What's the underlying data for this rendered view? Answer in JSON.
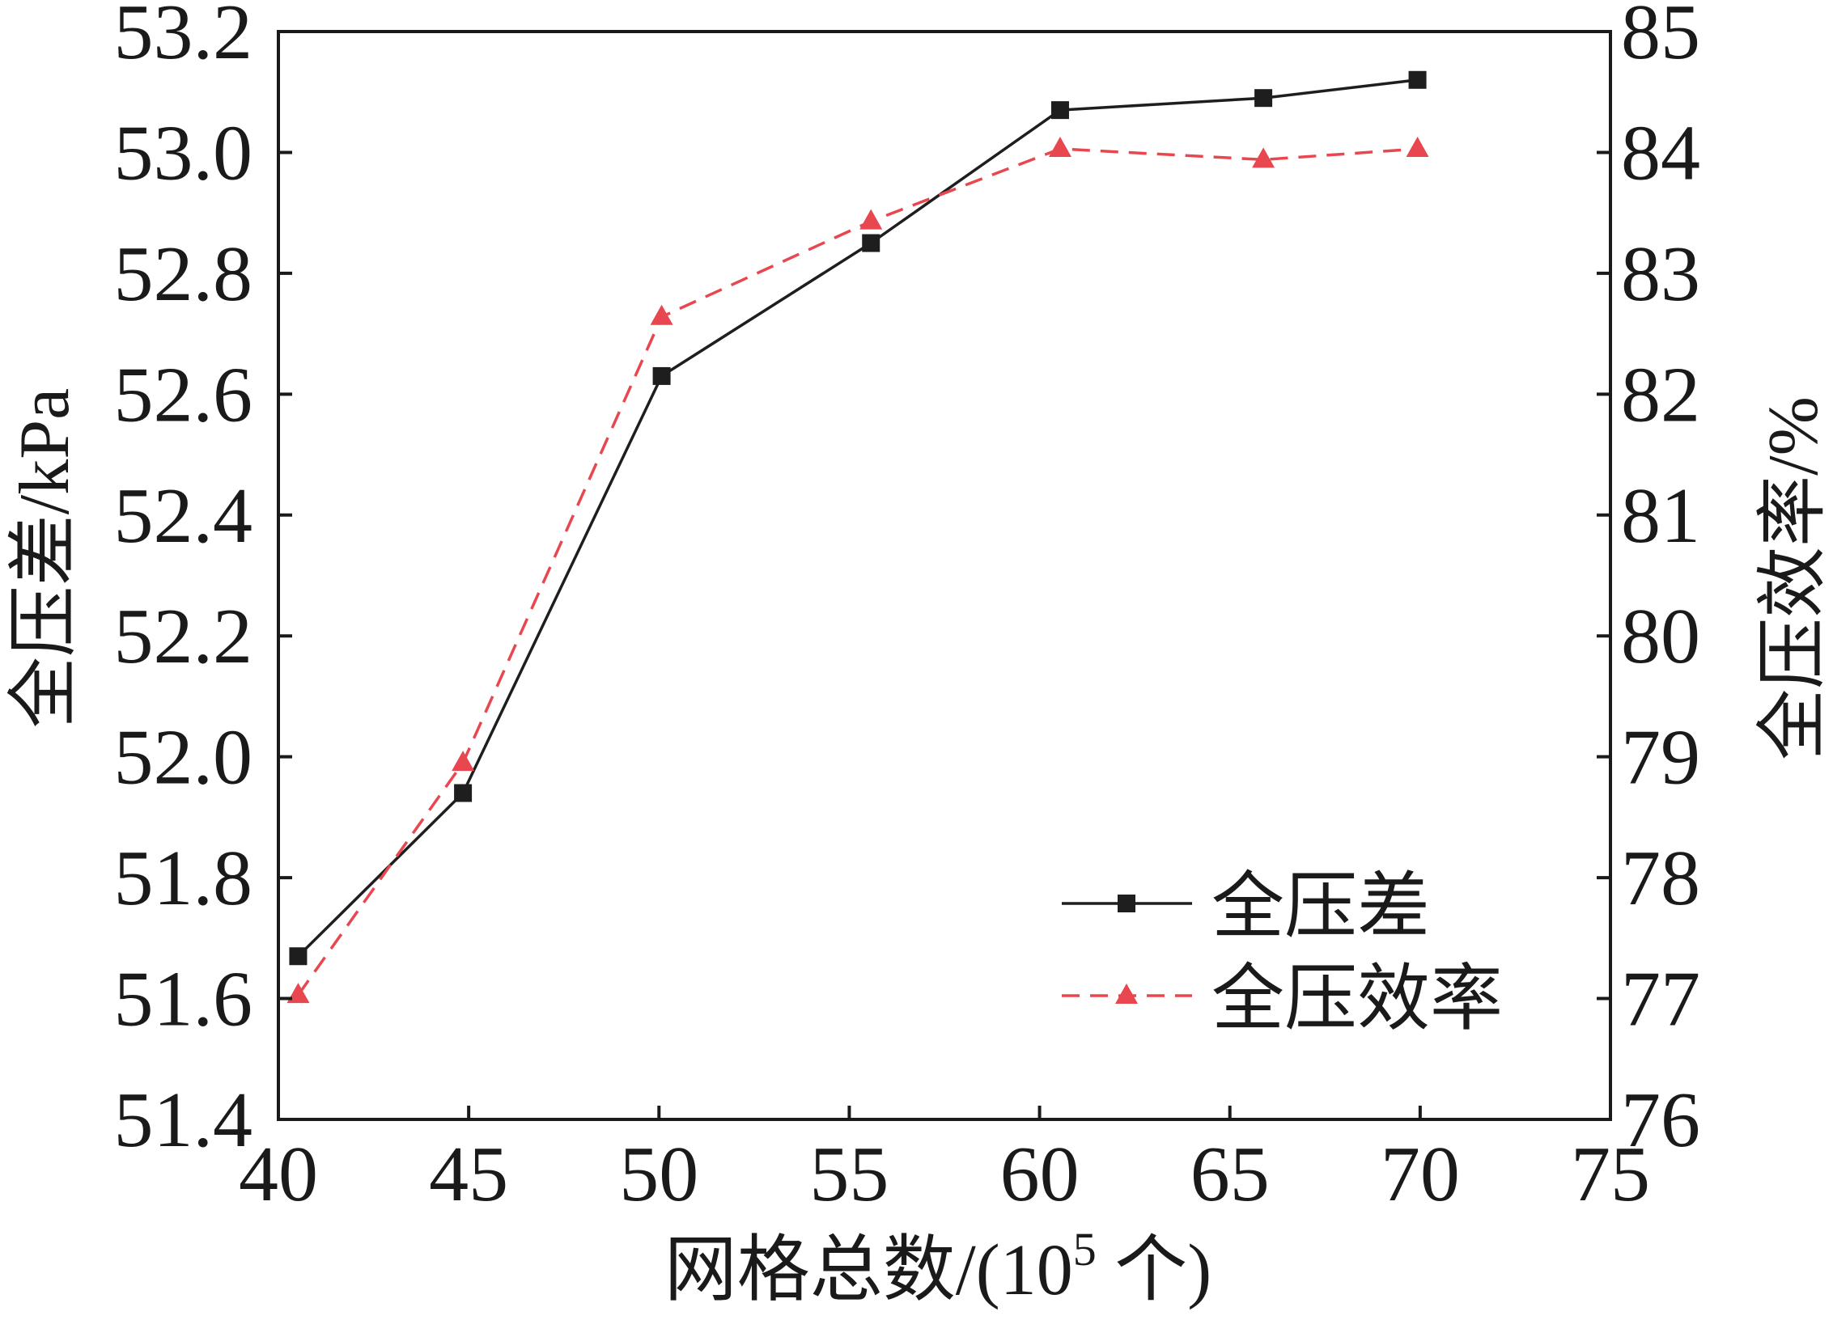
{
  "chart_data": {
    "type": "line",
    "x_axis": {
      "label": {
        "text": "网格总数/(10",
        "superscript": "5",
        "suffix": " 个)"
      },
      "range": [
        40,
        75
      ],
      "ticks": [
        40,
        45,
        50,
        55,
        60,
        65,
        70,
        75
      ]
    },
    "y_axis_left": {
      "label": "全压差/kPa",
      "range": [
        51.4,
        53.2
      ],
      "ticks": [
        "51.4",
        "51.6",
        "51.8",
        "52.0",
        "52.2",
        "52.4",
        "52.6",
        "52.8",
        "53.0",
        "53.2"
      ]
    },
    "y_axis_right": {
      "label": "全压效率/%",
      "range": [
        76,
        85
      ],
      "ticks": [
        76,
        77,
        78,
        79,
        80,
        81,
        82,
        83,
        84,
        85
      ]
    },
    "grid": false,
    "legend": "bottom-right",
    "series": [
      {
        "name": "全压差",
        "y_axis": "left",
        "marker": "square",
        "line_style": "solid",
        "color": "#1e1e1e",
        "x": [
          40.52,
          44.85,
          50.07,
          55.57,
          60.54,
          65.88,
          69.93
        ],
        "y": [
          51.67,
          51.94,
          52.63,
          52.85,
          53.07,
          53.09,
          53.12
        ]
      },
      {
        "name": "全压效率",
        "y_axis": "right",
        "marker": "triangle",
        "line_style": "dashed",
        "color": "#e8474f",
        "x": [
          40.52,
          44.85,
          50.07,
          55.57,
          60.54,
          65.88,
          69.93
        ],
        "y": [
          77.03,
          78.95,
          82.64,
          83.43,
          84.03,
          83.94,
          84.03
        ]
      }
    ]
  }
}
